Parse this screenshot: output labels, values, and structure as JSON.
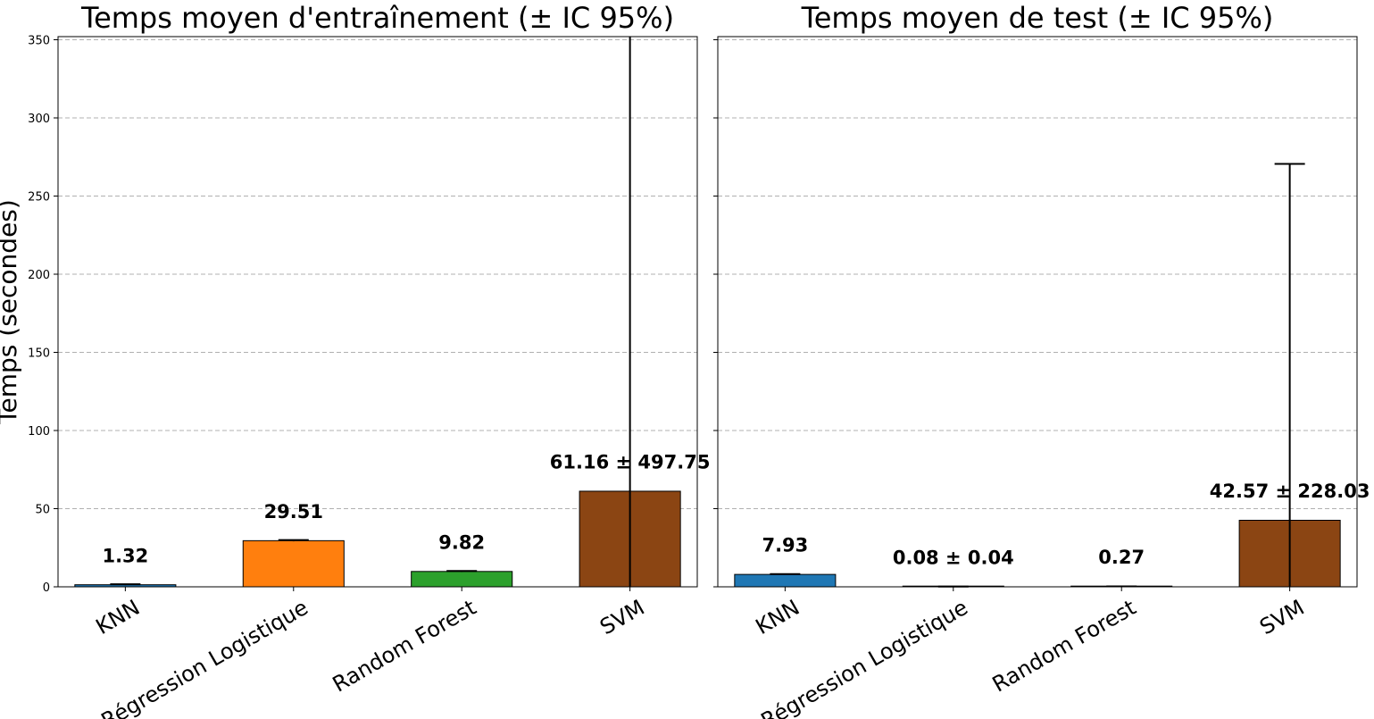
{
  "chart_data": [
    {
      "type": "bar",
      "title": "Temps moyen d'entraînement (± IC 95%)",
      "ylabel": "Temps (secondes)",
      "xlabel": "",
      "categories": [
        "KNN",
        "Régression Logistique",
        "Random Forest",
        "SVM"
      ],
      "values": [
        1.32,
        29.51,
        9.82,
        61.16
      ],
      "errors": [
        0.3,
        0.4,
        0.3,
        497.75
      ],
      "labels": [
        "1.32",
        "29.51",
        "9.82",
        "61.16 ± 497.75"
      ],
      "colors": [
        "#1f77b4",
        "#ff7f0e",
        "#2ca02c",
        "#8b4513"
      ],
      "ylim": [
        0,
        352
      ],
      "yticks": [
        0,
        50,
        100,
        150,
        200,
        250,
        300,
        350
      ],
      "grid": true
    },
    {
      "type": "bar",
      "title": "Temps moyen de test (± IC 95%)",
      "ylabel": "",
      "xlabel": "",
      "categories": [
        "KNN",
        "Régression Logistique",
        "Random Forest",
        "SVM"
      ],
      "values": [
        7.93,
        0.08,
        0.27,
        42.57
      ],
      "errors": [
        0.2,
        0.04,
        0.05,
        228.03
      ],
      "labels": [
        "7.93",
        "0.08 ± 0.04",
        "0.27",
        "42.57 ± 228.03"
      ],
      "colors": [
        "#1f77b4",
        "#ff7f0e",
        "#2ca02c",
        "#8b4513"
      ],
      "ylim": [
        0,
        352
      ],
      "yticks": [
        0,
        50,
        100,
        150,
        200,
        250,
        300,
        350
      ],
      "grid": true
    }
  ]
}
